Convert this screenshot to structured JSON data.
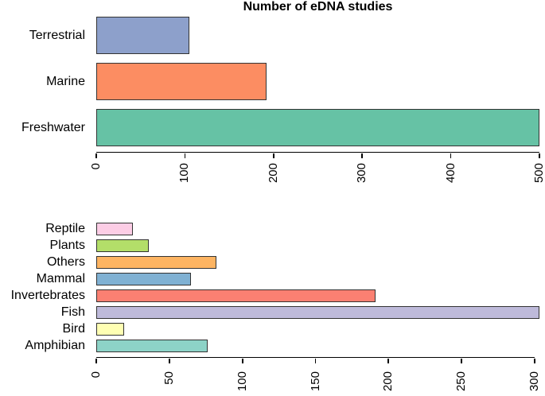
{
  "figure": {
    "background": "#ffffff"
  },
  "chart_data": [
    {
      "type": "bar",
      "orientation": "horizontal",
      "title": "Number of eDNA studies",
      "categories": [
        "Terrestrial",
        "Marine",
        "Freshwater"
      ],
      "values": [
        105,
        192,
        500
      ],
      "bar_colors": [
        "#8da0cb",
        "#fc8d62",
        "#66c2a5"
      ],
      "xlim": [
        0,
        500
      ],
      "xticks": [
        0,
        100,
        200,
        300,
        400,
        500
      ],
      "xlabel": "",
      "ylabel": "",
      "grid": false,
      "legend": null,
      "tick_label_rotation": 90,
      "bar_border_color": "#333333"
    },
    {
      "type": "bar",
      "orientation": "horizontal",
      "title": "",
      "categories": [
        "Reptile",
        "Plants",
        "Others",
        "Mammal",
        "Invertebrates",
        "Fish",
        "Bird",
        "Amphibian"
      ],
      "values": [
        25,
        36,
        82,
        65,
        191,
        303,
        19,
        76
      ],
      "bar_colors": [
        "#fccde5",
        "#b3de69",
        "#fdb462",
        "#80b1d3",
        "#fb8072",
        "#bebada",
        "#ffffb3",
        "#8dd3c7"
      ],
      "xlim": [
        0,
        300
      ],
      "xticks": [
        0,
        50,
        100,
        150,
        200,
        250,
        300
      ],
      "xlabel": "",
      "ylabel": "",
      "grid": false,
      "legend": null,
      "tick_label_rotation": 90,
      "bar_border_color": "#333333"
    }
  ]
}
